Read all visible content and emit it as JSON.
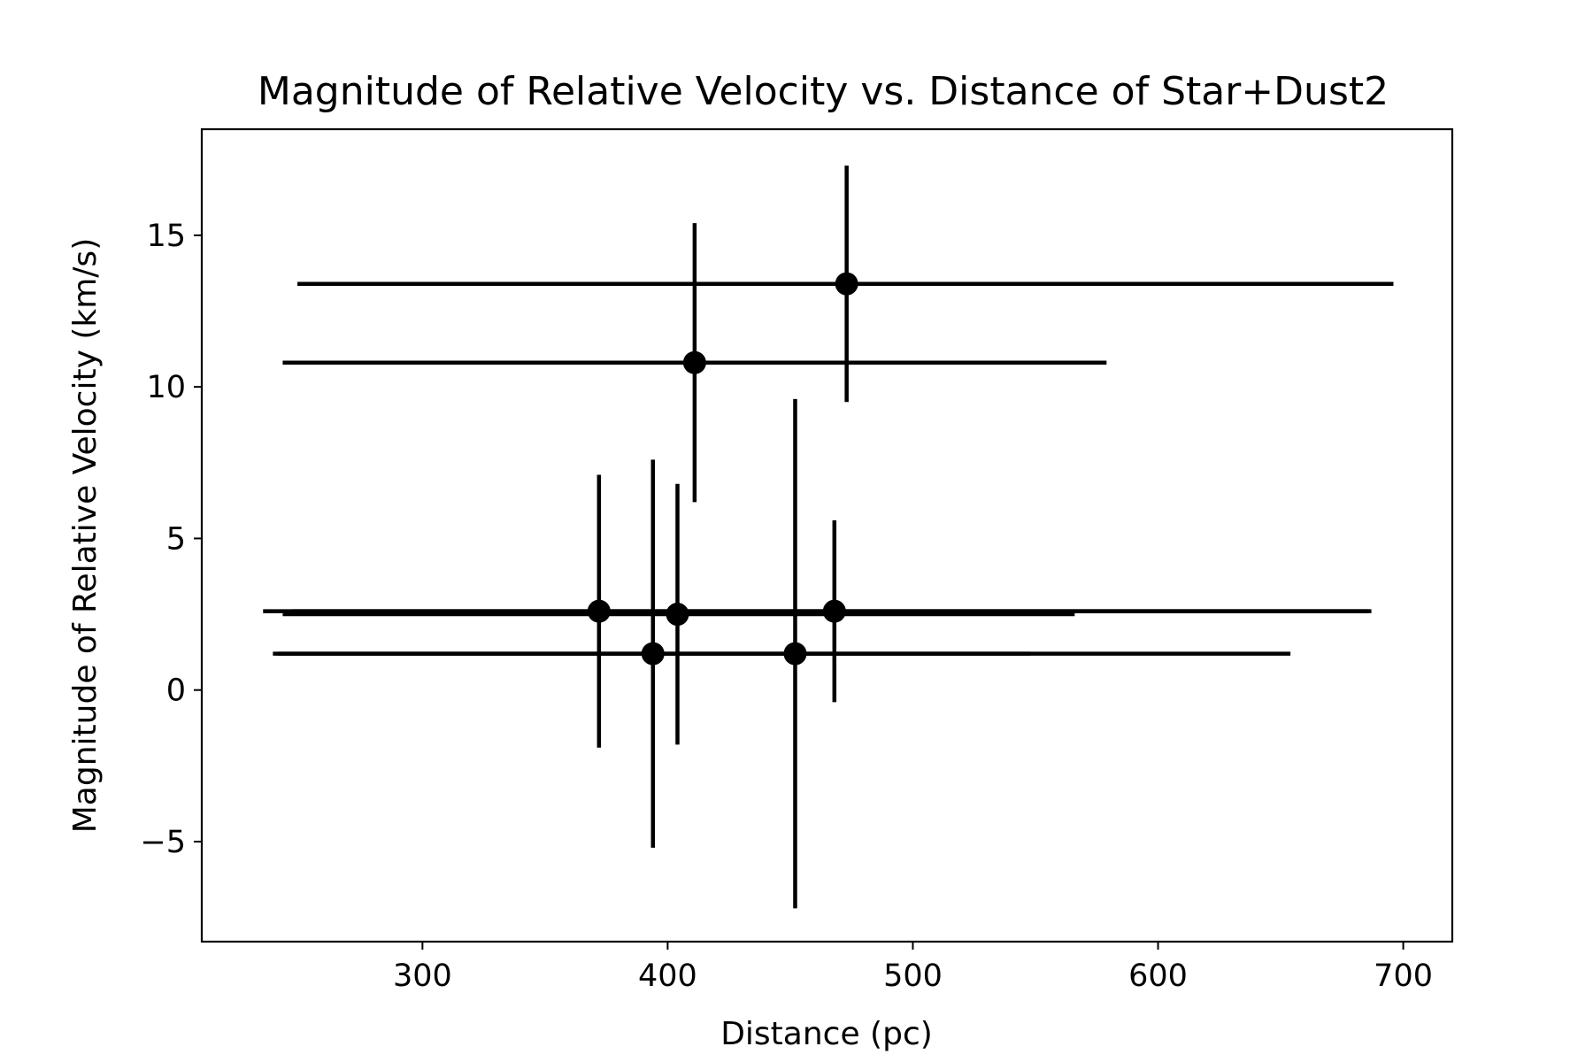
{
  "chart_data": {
    "type": "scatter",
    "title": "Magnitude of Relative Velocity vs. Distance of Star+Dust2",
    "xlabel": "Distance (pc)",
    "ylabel": "Magnitude of Relative Velocity (km/s)",
    "xlim": [
      210,
      720
    ],
    "ylim": [
      -8.3,
      18.5
    ],
    "xticks": [
      300,
      400,
      500,
      600,
      700
    ],
    "yticks": [
      -5,
      0,
      5,
      10,
      15
    ],
    "xtick_labels": [
      "300",
      "400",
      "500",
      "600",
      "700"
    ],
    "ytick_labels": [
      "−5",
      "0",
      "5",
      "10",
      "15"
    ],
    "grid": false,
    "color": "#000000",
    "points": [
      {
        "x": 473,
        "y": 13.4,
        "xerr_low": 224,
        "xerr_high": 223,
        "yerr": 3.9
      },
      {
        "x": 411,
        "y": 10.8,
        "xerr_low": 168,
        "xerr_high": 168,
        "yerr": 4.6
      },
      {
        "x": 372,
        "y": 2.6,
        "xerr_low": 137,
        "xerr_high": 314,
        "yerr": 4.5
      },
      {
        "x": 404,
        "y": 2.5,
        "xerr_low": 161,
        "xerr_high": 162,
        "yerr": 4.3
      },
      {
        "x": 468,
        "y": 2.6,
        "xerr_low": 221,
        "xerr_high": 219,
        "yerr": 3.0
      },
      {
        "x": 394,
        "y": 1.2,
        "xerr_low": 155,
        "xerr_high": 154,
        "yerr": 6.4
      },
      {
        "x": 452,
        "y": 1.2,
        "xerr_low": 211,
        "xerr_high": 202,
        "yerr": 8.4
      }
    ]
  }
}
